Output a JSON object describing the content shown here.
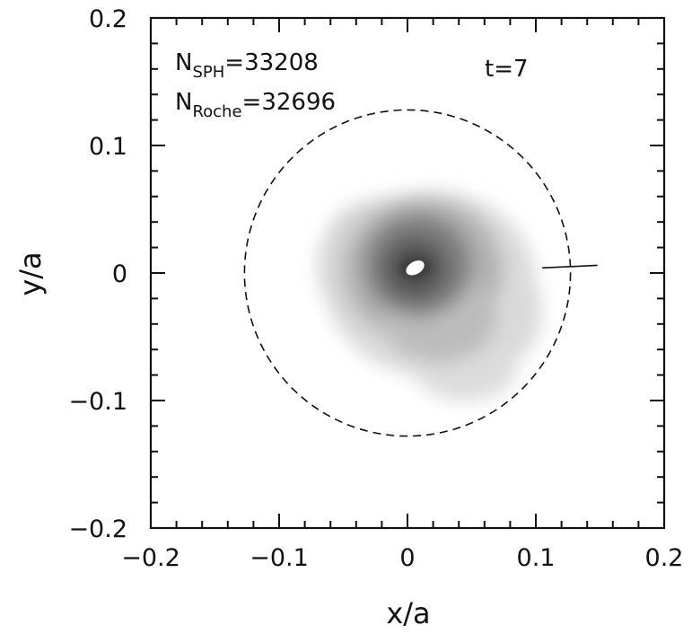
{
  "chart_data": {
    "type": "scatter",
    "xlabel": "x/a",
    "ylabel": "y/a",
    "xlim": [
      -0.2,
      0.2
    ],
    "ylim": [
      -0.2,
      0.2
    ],
    "x_ticks": [
      "−0.2",
      "−0.1",
      "0",
      "0.1",
      "0.2"
    ],
    "y_ticks": [
      "−0.2",
      "−0.1",
      "0",
      "0.1",
      "0.2"
    ],
    "x_tick_values": [
      -0.2,
      -0.1,
      0,
      0.1,
      0.2
    ],
    "y_tick_values": [
      -0.2,
      -0.1,
      0,
      0.1,
      0.2
    ],
    "annotations": {
      "n_sph": {
        "prefix": "N",
        "sub": "SPH",
        "rest": "=33208"
      },
      "n_roche": {
        "prefix": "N",
        "sub": "Roche",
        "rest": "=32696"
      },
      "time": "t=7"
    },
    "roche_lobe": {
      "center": [
        0,
        0
      ],
      "radius": 0.127,
      "style": "dashed"
    },
    "disk": {
      "center": [
        0.015,
        0.0
      ],
      "approx_extent_x": [
        -0.06,
        0.1
      ],
      "approx_extent_y": [
        -0.1,
        0.055
      ],
      "bright_core": [
        0.006,
        0.004
      ]
    },
    "marker_segment": {
      "x": [
        0.105,
        0.148
      ],
      "y": [
        0.004,
        0.006
      ]
    }
  }
}
